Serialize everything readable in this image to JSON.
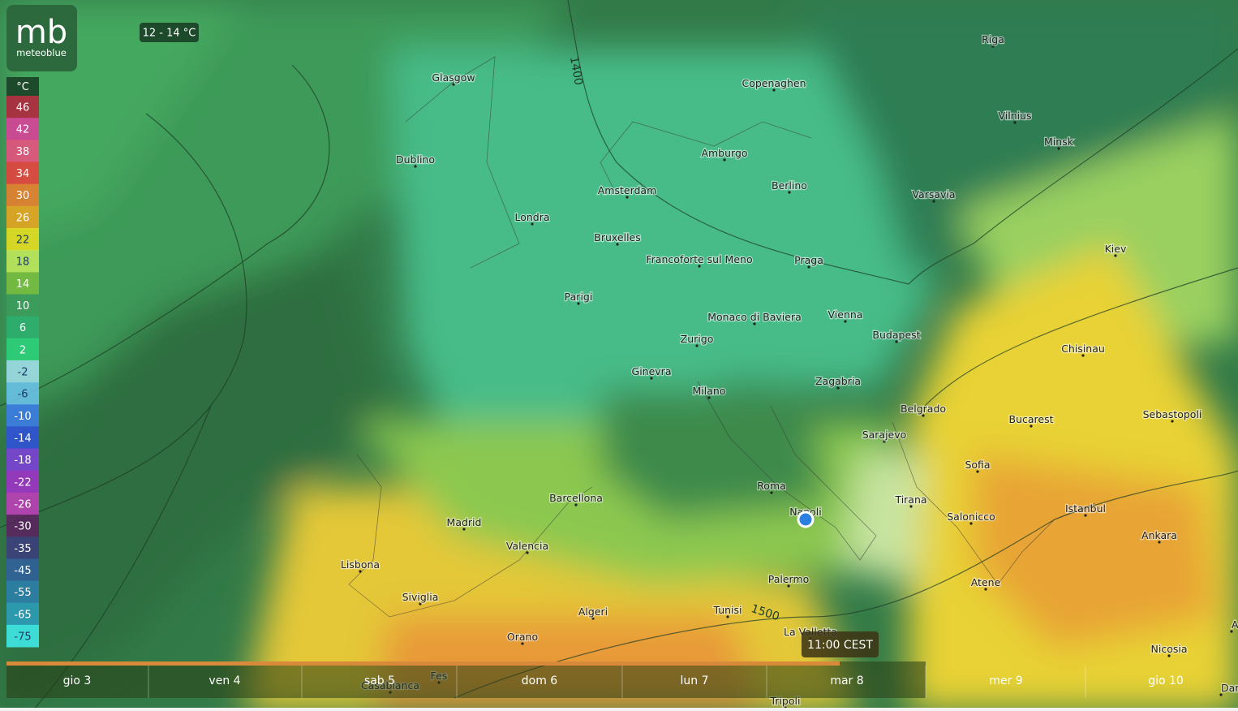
{
  "logo": {
    "mark": "mb",
    "name": "meteoblue"
  },
  "range_label": "12 - 14 °C",
  "legend": {
    "unit": "°C",
    "entries": [
      {
        "label": "46",
        "color": "#b8203c"
      },
      {
        "label": "42",
        "color": "#e03c9c"
      },
      {
        "label": "38",
        "color": "#f04c80"
      },
      {
        "label": "34",
        "color": "#f03c3c"
      },
      {
        "label": "30",
        "color": "#f07c2c"
      },
      {
        "label": "26",
        "color": "#f0a41c"
      },
      {
        "label": "22",
        "color": "#f0e01c"
      },
      {
        "label": "18",
        "color": "#c8ec5c"
      },
      {
        "label": "14",
        "color": "#7cc040"
      },
      {
        "label": "10",
        "color": "#3c9c5c"
      },
      {
        "label": "6",
        "color": "#2cb070"
      },
      {
        "label": "2",
        "color": "#2cd47c"
      },
      {
        "label": "-2",
        "color": "#a4e0f0"
      },
      {
        "label": "-6",
        "color": "#6cc4f0"
      },
      {
        "label": "-10",
        "color": "#3c7cf0"
      },
      {
        "label": "-14",
        "color": "#3050e0"
      },
      {
        "label": "-18",
        "color": "#8040e0"
      },
      {
        "label": "-22",
        "color": "#a430d0"
      },
      {
        "label": "-26",
        "color": "#c43cc0"
      },
      {
        "label": "-30",
        "color": "#5c2060"
      },
      {
        "label": "-35",
        "color": "#3c3c80"
      },
      {
        "label": "-45",
        "color": "#3060a0"
      },
      {
        "label": "-55",
        "color": "#2c80b0"
      },
      {
        "label": "-65",
        "color": "#2ca0c0"
      },
      {
        "label": "-75",
        "color": "#40f0f0"
      }
    ]
  },
  "cities": [
    {
      "name": "Riga"
    },
    {
      "name": "Glasgow"
    },
    {
      "name": "Copenaghen"
    },
    {
      "name": "Vilnius"
    },
    {
      "name": "Minsk"
    },
    {
      "name": "Dublino"
    },
    {
      "name": "Amburgo"
    },
    {
      "name": "Berlino"
    },
    {
      "name": "Amsterdam"
    },
    {
      "name": "Varsavia"
    },
    {
      "name": "Londra"
    },
    {
      "name": "Bruxelles"
    },
    {
      "name": "Kiev"
    },
    {
      "name": "Francoforte sul Meno"
    },
    {
      "name": "Praga"
    },
    {
      "name": "Parigi"
    },
    {
      "name": "Monaco di Baviera"
    },
    {
      "name": "Vienna"
    },
    {
      "name": "Budapest"
    },
    {
      "name": "Zurigo"
    },
    {
      "name": "Chisinau"
    },
    {
      "name": "Ginevra"
    },
    {
      "name": "Zagabria"
    },
    {
      "name": "Milano"
    },
    {
      "name": "Belgrado"
    },
    {
      "name": "Sebastopoli"
    },
    {
      "name": "Bucarest"
    },
    {
      "name": "Sarajevo"
    },
    {
      "name": "Sofia"
    },
    {
      "name": "Roma"
    },
    {
      "name": "Barcellona"
    },
    {
      "name": "Tirana"
    },
    {
      "name": "Istanbul"
    },
    {
      "name": "Napoli"
    },
    {
      "name": "Madrid"
    },
    {
      "name": "Salonicco"
    },
    {
      "name": "Ankara"
    },
    {
      "name": "Valencia"
    },
    {
      "name": "Lisbona"
    },
    {
      "name": "Palermo"
    },
    {
      "name": "Atene"
    },
    {
      "name": "Siviglia"
    },
    {
      "name": "Algeri"
    },
    {
      "name": "Tunisi"
    },
    {
      "name": "La Valletta"
    },
    {
      "name": "Orano"
    },
    {
      "name": "Nicosia"
    },
    {
      "name": "Fes"
    },
    {
      "name": "Casablanca"
    },
    {
      "name": "Tripoli"
    },
    {
      "name": "Damas"
    },
    {
      "name": "Ale"
    }
  ],
  "contours": [
    "1400",
    "1500"
  ],
  "time_label": "11:00 CEST",
  "timeline": {
    "days": [
      "gio 3",
      "ven 4",
      "sab 5",
      "dom 6",
      "lun 7",
      "mar 8",
      "mer 9",
      "gio 10"
    ]
  }
}
